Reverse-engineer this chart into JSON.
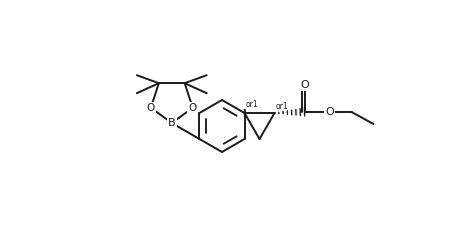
{
  "bg_color": "#ffffff",
  "line_color": "#1a1a1a",
  "line_width": 1.4,
  "font_size": 7.5,
  "figsize": [
    4.56,
    2.44
  ],
  "dpi": 100,
  "xlim": [
    0,
    4.56
  ],
  "ylim": [
    0,
    2.44
  ]
}
